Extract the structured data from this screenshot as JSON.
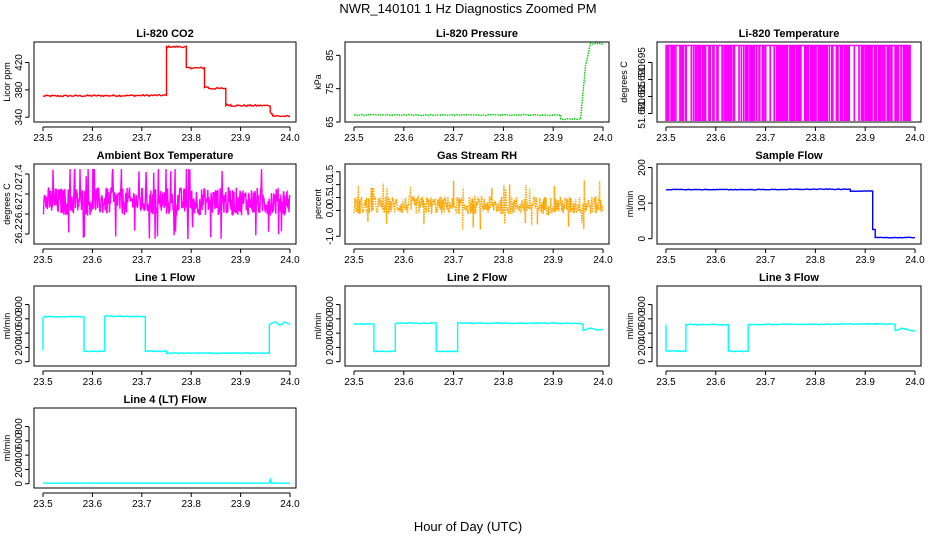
{
  "figure": {
    "title": "NWR_140101  1 Hz Diagnostics Zoomed PM",
    "xlabel": "Hour of Day (UTC)"
  },
  "chart_data": [
    {
      "type": "line",
      "title": "Li-820 CO2",
      "ylabel": "Licor ppm",
      "color": "#ff0000",
      "xlim": [
        23.5,
        24.0
      ],
      "ylim": [
        333,
        450
      ],
      "xticks": [
        23.5,
        23.6,
        23.7,
        23.8,
        23.9,
        24.0
      ],
      "yticks": [
        340,
        380,
        420
      ],
      "xticklabels": [
        "23.5",
        "23.6",
        "23.7",
        "23.8",
        "23.9",
        "24.0"
      ],
      "yticklabels": [
        "340",
        "380",
        "420"
      ],
      "series": [
        {
          "name": "CO2",
          "x": [
            23.5,
            23.75,
            23.75,
            23.79,
            23.79,
            23.8,
            23.8,
            23.827,
            23.827,
            23.835,
            23.835,
            23.87,
            23.87,
            23.88,
            23.88,
            23.96,
            23.96,
            23.965,
            23.965,
            24.0
          ],
          "y": [
            371,
            372,
            443,
            443,
            412,
            412,
            412,
            412,
            384,
            384,
            382,
            382,
            358,
            358,
            357,
            357,
            347,
            345,
            342,
            341
          ],
          "noise": 1.2
        }
      ]
    },
    {
      "type": "line",
      "title": "Li-820 Pressure",
      "ylabel": "kPa",
      "color": "#00cc00",
      "style": "dotted",
      "xlim": [
        23.5,
        24.0
      ],
      "ylim": [
        65,
        89
      ],
      "xticks": [
        23.5,
        23.6,
        23.7,
        23.8,
        23.9,
        24.0
      ],
      "yticks": [
        65,
        75,
        85
      ],
      "xticklabels": [
        "23.5",
        "23.6",
        "23.7",
        "23.8",
        "23.9",
        "24.0"
      ],
      "yticklabels": [
        "65",
        "75",
        "85"
      ],
      "series": [
        {
          "name": "Pressure",
          "x": [
            23.5,
            23.915,
            23.915,
            23.955,
            23.958,
            23.965,
            23.975,
            24.0
          ],
          "y": [
            67.1,
            67.1,
            65.9,
            65.9,
            71,
            82,
            88.5,
            88.5
          ],
          "noise": 0.15
        }
      ]
    },
    {
      "type": "line",
      "title": "Li-820 Temperature",
      "ylabel": "degrees C",
      "color": "#ff00ff",
      "xlim": [
        23.5,
        24.0
      ],
      "ylim": [
        51.6775,
        51.701
      ],
      "xticks": [
        23.5,
        23.6,
        23.7,
        23.8,
        23.9,
        24.0
      ],
      "yticks": [
        51.68,
        51.685,
        51.69,
        51.695
      ],
      "xticklabels": [
        "23.5",
        "23.6",
        "23.7",
        "23.8",
        "23.9",
        "24.0"
      ],
      "yticklabels": [
        "51.680",
        "51.685",
        "51.690",
        "51.695"
      ],
      "series": [
        {
          "name": "Temperature",
          "pattern": "toggle",
          "x_start": 23.5,
          "x_end": 23.99,
          "high": 51.7,
          "low": 51.678
        }
      ]
    },
    {
      "type": "line",
      "title": "Ambient Box Temperature",
      "ylabel": "degrees C",
      "color": "#ff00ff",
      "xlim": [
        23.5,
        24.0
      ],
      "ylim": [
        26.0,
        27.6
      ],
      "xticks": [
        23.5,
        23.6,
        23.7,
        23.8,
        23.9,
        24.0
      ],
      "yticks": [
        26.2,
        26.6,
        27.0,
        27.4
      ],
      "xticklabels": [
        "23.5",
        "23.6",
        "23.7",
        "23.8",
        "23.9",
        "24.0"
      ],
      "yticklabels": [
        "26.2",
        "26.6",
        "27.0",
        "27.4"
      ],
      "series": [
        {
          "name": "Ambient",
          "pattern": "noise",
          "x_start": 23.5,
          "x_end": 24.0,
          "mean": 26.85,
          "amp": 0.28,
          "min": 26.1,
          "max": 27.5
        }
      ]
    },
    {
      "type": "line",
      "title": "Gas Stream RH",
      "ylabel": "percent",
      "color": "#ffa500",
      "style": "dotted",
      "xlim": [
        23.5,
        24.0
      ],
      "ylim": [
        -1.3,
        1.8
      ],
      "xticks": [
        23.5,
        23.6,
        23.7,
        23.8,
        23.9,
        24.0
      ],
      "yticks": [
        -1.0,
        0.0,
        0.5,
        1.0,
        1.5
      ],
      "xticklabels": [
        "23.5",
        "23.6",
        "23.7",
        "23.8",
        "23.9",
        "24.0"
      ],
      "yticklabels": [
        "-1.0",
        "0.0",
        "0.5",
        "1.0",
        "1.5"
      ],
      "series": [
        {
          "name": "RH",
          "pattern": "noise",
          "x_start": 23.5,
          "x_end": 24.0,
          "mean": 0.2,
          "amp": 0.35,
          "min": -1.2,
          "max": 1.6
        }
      ]
    },
    {
      "type": "line",
      "title": "Sample Flow",
      "ylabel": "ml/min",
      "color": "#0000ff",
      "xlim": [
        23.5,
        24.0
      ],
      "ylim": [
        -15,
        210
      ],
      "xticks": [
        23.5,
        23.6,
        23.7,
        23.8,
        23.9,
        24.0
      ],
      "yticks": [
        0,
        100,
        200
      ],
      "xticklabels": [
        "23.5",
        "23.6",
        "23.7",
        "23.8",
        "23.9",
        "24.0"
      ],
      "yticklabels": [
        "0",
        "100",
        "200"
      ],
      "series": [
        {
          "name": "Sample",
          "x": [
            23.5,
            23.7,
            23.8,
            23.87,
            23.87,
            23.915,
            23.915,
            23.92,
            23.92,
            24.0
          ],
          "y": [
            138,
            138,
            139,
            139,
            134,
            134,
            25,
            25,
            3,
            3
          ],
          "noise": 1.0
        }
      ]
    },
    {
      "type": "line",
      "title": "Line 1 Flow",
      "ylabel": "ml/min",
      "color": "#00ffff",
      "xlim": [
        23.5,
        24.0
      ],
      "ylim": [
        -60,
        1060
      ],
      "xticks": [
        23.5,
        23.6,
        23.7,
        23.8,
        23.9,
        24.0
      ],
      "yticks": [
        0,
        200,
        400,
        600,
        800
      ],
      "xticklabels": [
        "23.5",
        "23.6",
        "23.7",
        "23.8",
        "23.9",
        "24.0"
      ],
      "yticklabels": [
        "0",
        "200",
        "400",
        "600",
        "800"
      ],
      "series": [
        {
          "name": "Line1",
          "x": [
            23.5,
            23.5,
            23.503,
            23.503,
            23.583,
            23.583,
            23.625,
            23.625,
            23.707,
            23.707,
            23.75,
            23.75,
            23.958,
            23.958,
            23.97,
            23.98,
            23.99,
            24.0
          ],
          "y": [
            160,
            620,
            630,
            630,
            630,
            145,
            145,
            640,
            630,
            150,
            145,
            120,
            120,
            520,
            560,
            510,
            560,
            520
          ],
          "noise": 6
        }
      ]
    },
    {
      "type": "line",
      "title": "Line 2 Flow",
      "ylabel": "ml/min",
      "color": "#00ffff",
      "xlim": [
        23.5,
        24.0
      ],
      "ylim": [
        -60,
        1060
      ],
      "xticks": [
        23.5,
        23.6,
        23.7,
        23.8,
        23.9,
        24.0
      ],
      "yticks": [
        0,
        200,
        400,
        600,
        800
      ],
      "xticklabels": [
        "23.5",
        "23.6",
        "23.7",
        "23.8",
        "23.9",
        "24.0"
      ],
      "yticklabels": [
        "0",
        "200",
        "400",
        "600",
        "800"
      ],
      "series": [
        {
          "name": "Line2",
          "x": [
            23.5,
            23.54,
            23.54,
            23.583,
            23.583,
            23.665,
            23.665,
            23.708,
            23.708,
            23.95,
            23.96,
            23.96,
            23.975,
            23.99,
            24.0
          ],
          "y": [
            530,
            530,
            145,
            145,
            540,
            540,
            145,
            145,
            540,
            540,
            530,
            440,
            470,
            440,
            450
          ],
          "noise": 6
        }
      ]
    },
    {
      "type": "line",
      "title": "Line 3 Flow",
      "ylabel": "ml/min",
      "color": "#00ffff",
      "xlim": [
        23.5,
        24.0
      ],
      "ylim": [
        -60,
        1060
      ],
      "xticks": [
        23.5,
        23.6,
        23.7,
        23.8,
        23.9,
        24.0
      ],
      "yticks": [
        0,
        200,
        400,
        600,
        800
      ],
      "xticklabels": [
        "23.5",
        "23.6",
        "23.7",
        "23.8",
        "23.9",
        "24.0"
      ],
      "yticklabels": [
        "0",
        "200",
        "400",
        "600",
        "800"
      ],
      "series": [
        {
          "name": "Line3",
          "x": [
            23.5,
            23.5,
            23.503,
            23.503,
            23.54,
            23.54,
            23.625,
            23.625,
            23.665,
            23.665,
            23.95,
            23.96,
            23.96,
            23.975,
            23.99,
            24.0
          ],
          "y": [
            520,
            150,
            150,
            150,
            150,
            520,
            520,
            145,
            145,
            520,
            530,
            520,
            440,
            470,
            440,
            430
          ],
          "noise": 6
        }
      ]
    },
    {
      "type": "line",
      "title": "Line 4 (LT) Flow",
      "ylabel": "ml/min",
      "color": "#00ffff",
      "xlim": [
        23.5,
        24.0
      ],
      "ylim": [
        -60,
        1060
      ],
      "xticks": [
        23.5,
        23.6,
        23.7,
        23.8,
        23.9,
        24.0
      ],
      "yticks": [
        0,
        200,
        400,
        600,
        800
      ],
      "xticklabels": [
        "23.5",
        "23.6",
        "23.7",
        "23.8",
        "23.9",
        "24.0"
      ],
      "yticklabels": [
        "0",
        "200",
        "400",
        "600",
        "800"
      ],
      "series": [
        {
          "name": "Line4",
          "x": [
            23.5,
            23.958,
            23.96,
            23.962,
            24.0
          ],
          "y": [
            8,
            8,
            60,
            8,
            8
          ],
          "noise": 1
        }
      ]
    }
  ]
}
